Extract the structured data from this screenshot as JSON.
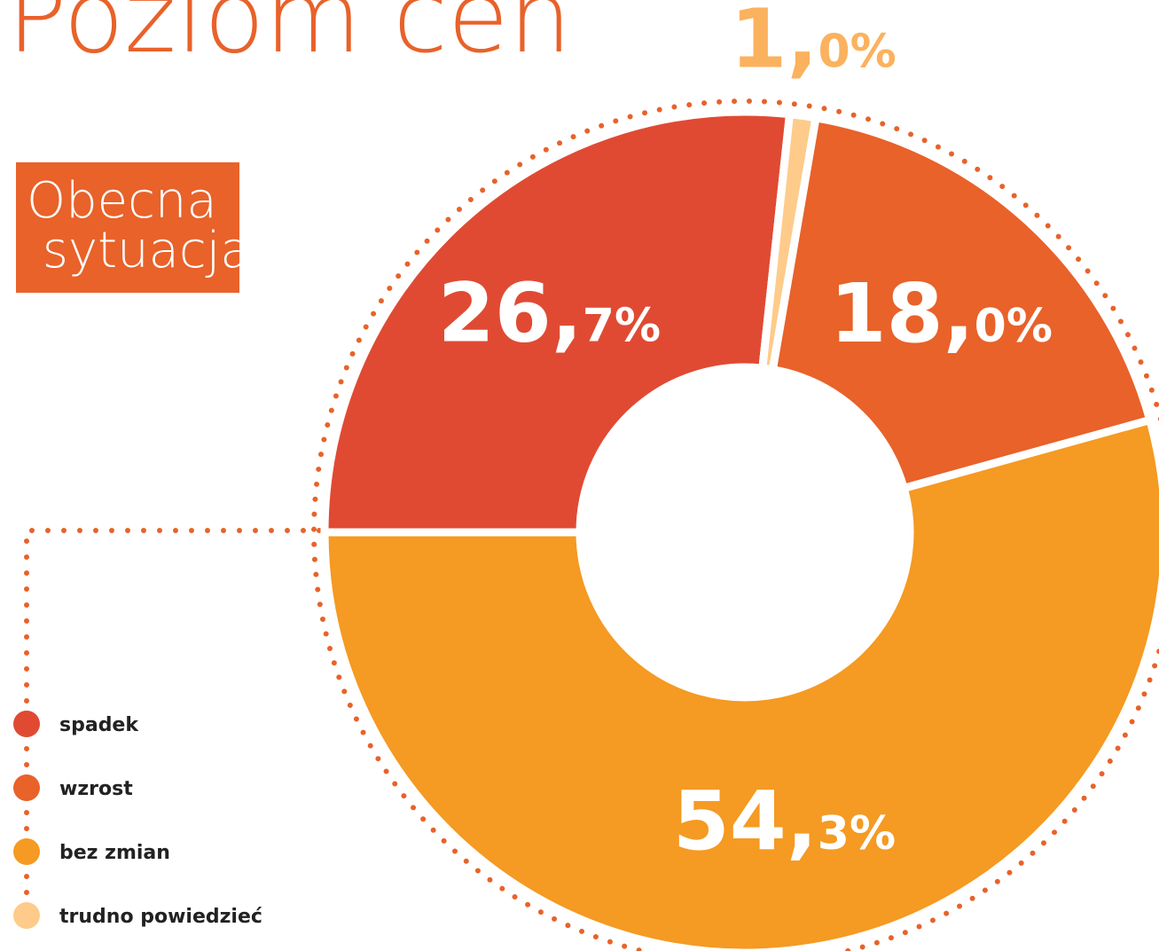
{
  "chart_data": {
    "type": "donut",
    "title": "Poziom cen",
    "subtitle": "Obecna sytuacja",
    "categories": [
      "spadek",
      "wzrost",
      "bez zmian",
      "trudno powiedzieć"
    ],
    "values": [
      26.7,
      18.0,
      54.3,
      1.0
    ],
    "value_labels": [
      "26,7%",
      "18,0%",
      "54,3%",
      "1,0%"
    ],
    "colors": [
      "#e04a33",
      "#e8622a",
      "#f59a22",
      "#fecb8a"
    ],
    "legend": "bottom-left"
  }
}
